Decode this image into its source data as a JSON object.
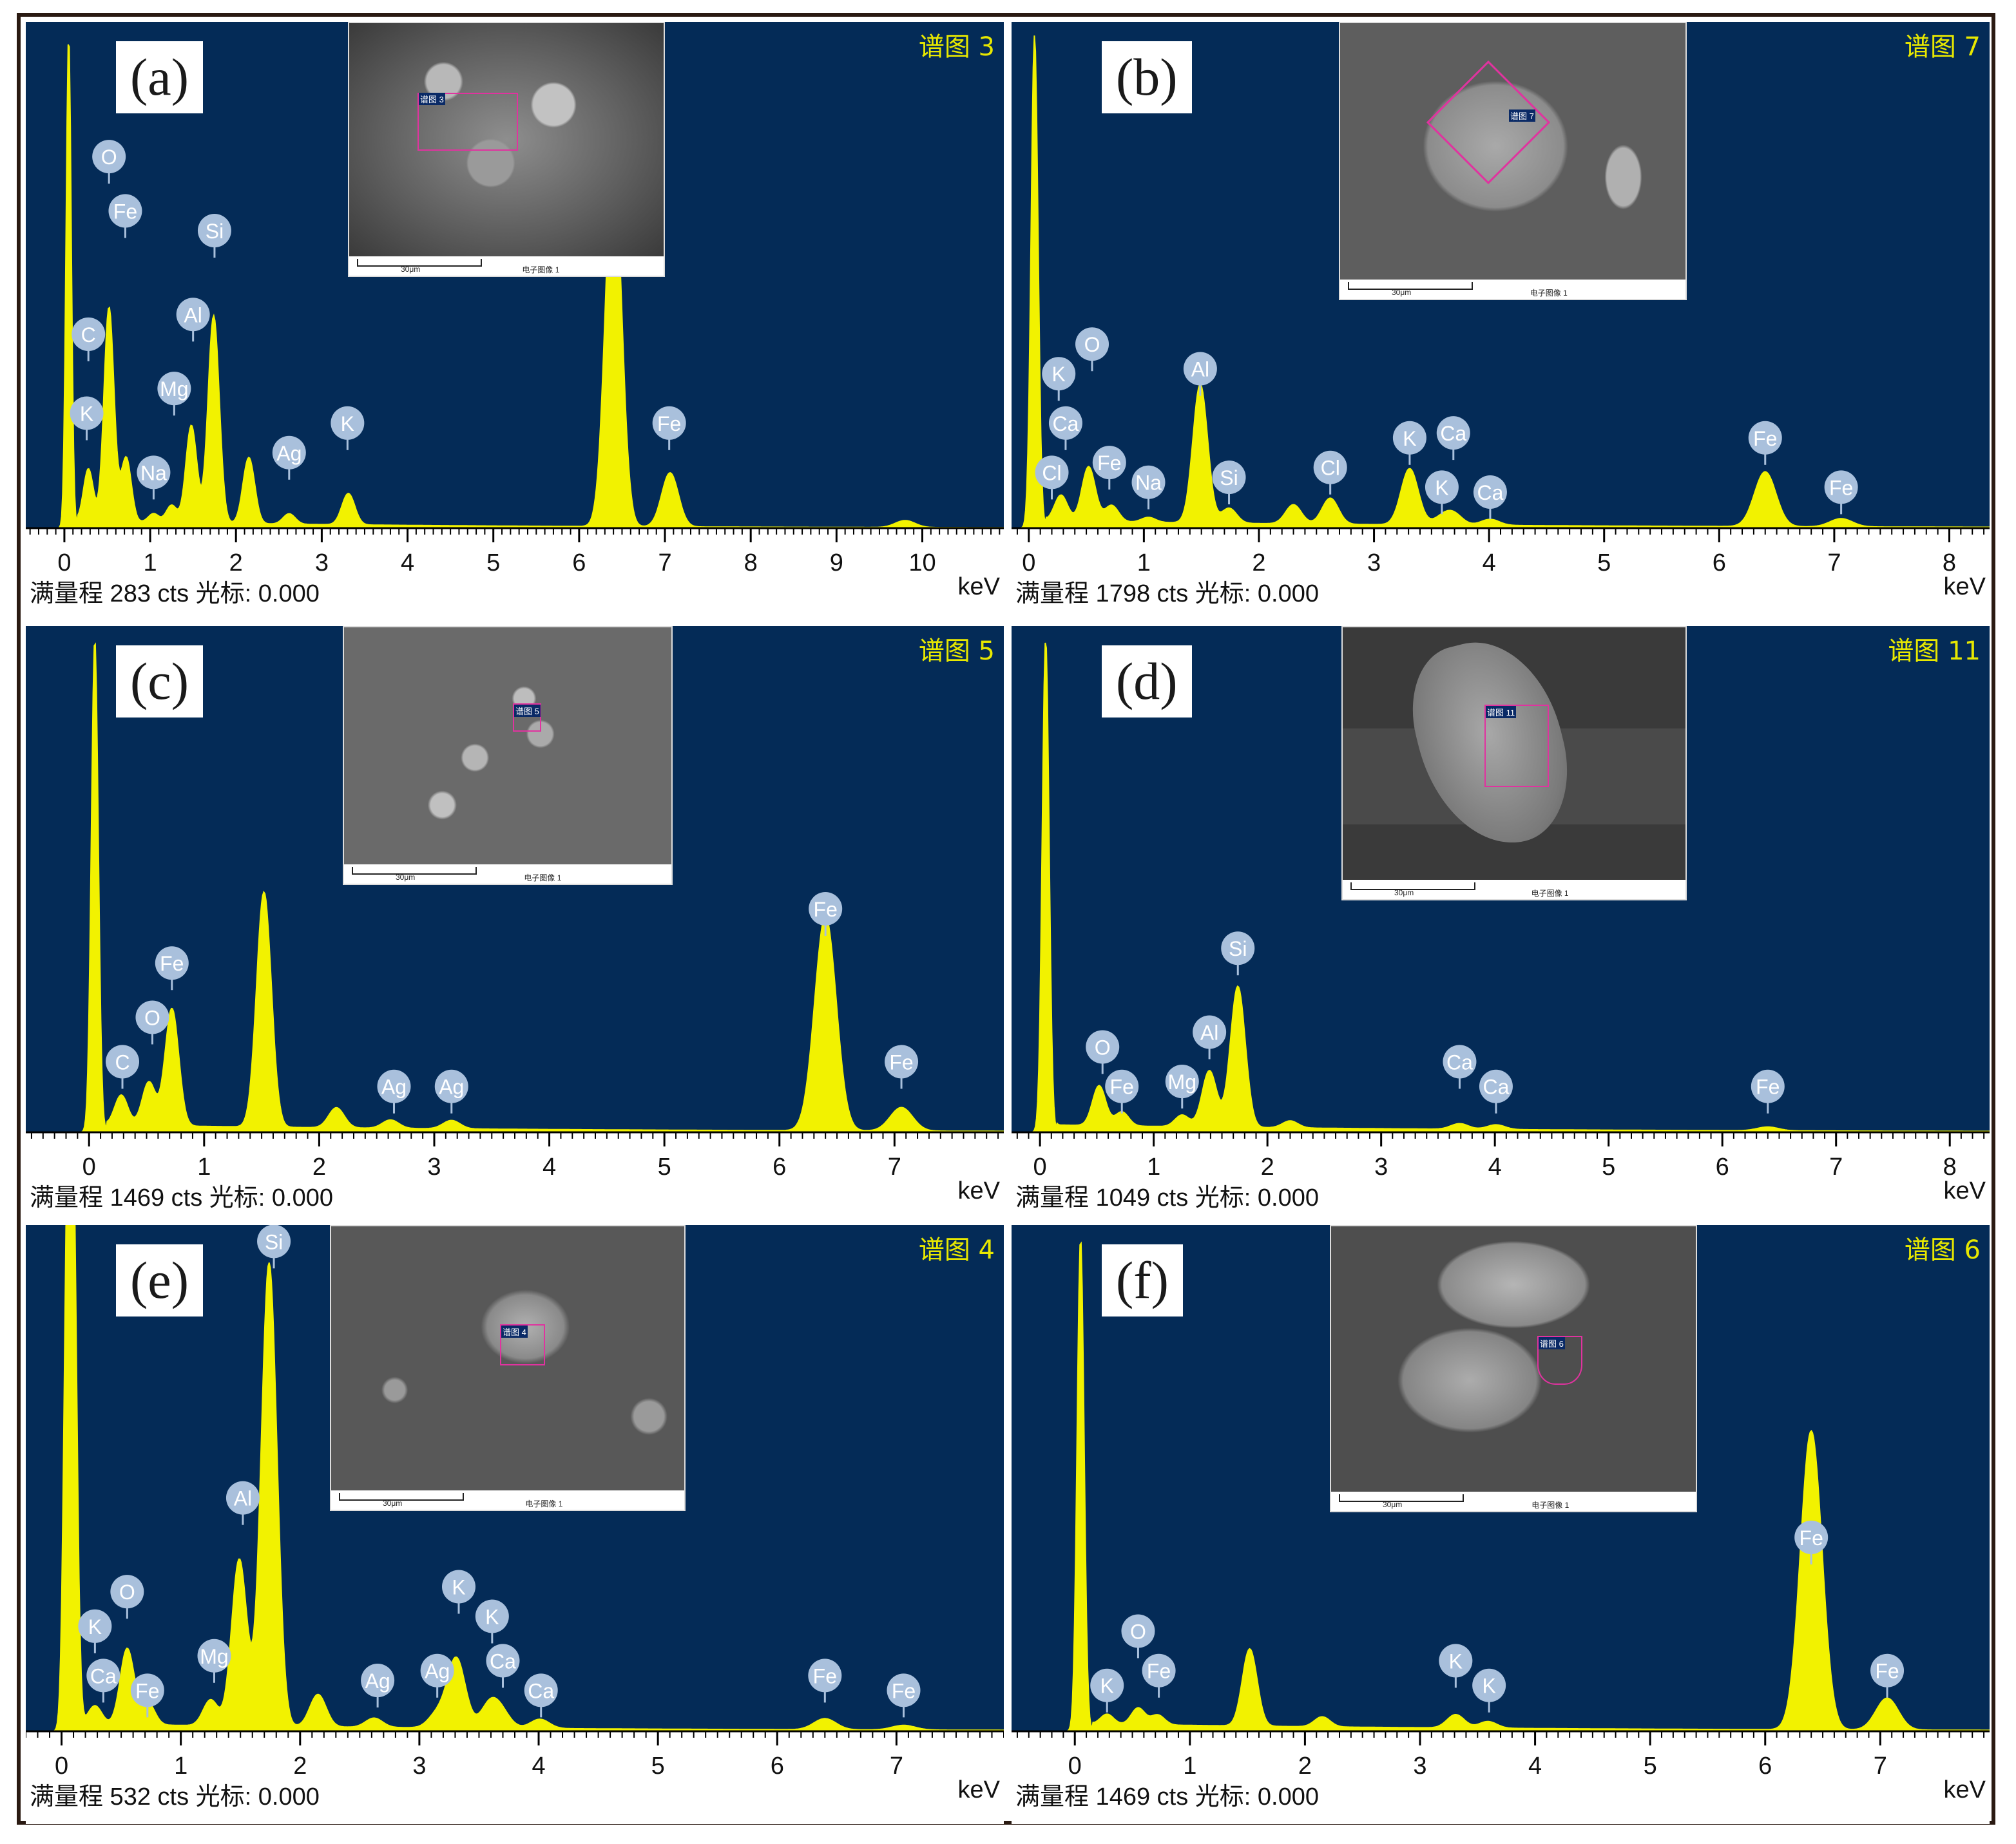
{
  "colors": {
    "plot_bg": "#042b57",
    "spectrum": "#f2f200",
    "peak_label_bg": "#a9c0dc",
    "roi": "#e0339f",
    "title_yellow": "#e8e800"
  },
  "chart_data": [
    {
      "type": "area",
      "panel_label": "(a)",
      "title": "谱图 3",
      "status": "满量程 283 cts 光标: 0.000",
      "xlabel": "keV",
      "xlim": [
        -0.45,
        10.95
      ],
      "xticks": [
        0,
        1,
        2,
        3,
        4,
        5,
        6,
        7,
        8,
        9,
        10
      ],
      "ylim": [
        0,
        283
      ],
      "x_peaks": [
        0.05,
        0.28,
        0.52,
        0.72,
        1.04,
        1.25,
        1.48,
        1.74,
        2.15,
        2.62,
        3.31,
        6.4,
        7.06,
        9.8
      ],
      "y_peaks": [
        283,
        30,
        123,
        37,
        5,
        10,
        56,
        119,
        38,
        6,
        18,
        213,
        31,
        4
      ],
      "peak_labels": [
        {
          "el": "O",
          "x": 0.52,
          "y_frac": 0.74
        },
        {
          "el": "Fe",
          "x": 0.71,
          "y_frac": 0.63
        },
        {
          "el": "C",
          "x": 0.28,
          "y_frac": 0.38
        },
        {
          "el": "K",
          "x": 0.26,
          "y_frac": 0.22
        },
        {
          "el": "Mg",
          "x": 1.28,
          "y_frac": 0.27
        },
        {
          "el": "Al",
          "x": 1.5,
          "y_frac": 0.42
        },
        {
          "el": "Si",
          "x": 1.75,
          "y_frac": 0.59
        },
        {
          "el": "Na",
          "x": 1.04,
          "y_frac": 0.1
        },
        {
          "el": "Ag",
          "x": 2.62,
          "y_frac": 0.14
        },
        {
          "el": "K",
          "x": 3.3,
          "y_frac": 0.2
        },
        {
          "el": "Fe",
          "x": 7.05,
          "y_frac": 0.2
        }
      ]
    },
    {
      "type": "area",
      "panel_label": "(b)",
      "title": "谱图 7",
      "status": "满量程 1798 cts 光标: 0.000",
      "xlabel": "keV",
      "xlim": [
        -0.15,
        8.35
      ],
      "xticks": [
        0,
        1,
        2,
        3,
        4,
        5,
        6,
        7,
        8
      ],
      "ylim": [
        0,
        1798
      ],
      "x_peaks": [
        0.05,
        0.28,
        0.52,
        0.72,
        1.04,
        1.49,
        1.74,
        2.3,
        2.62,
        3.31,
        3.59,
        3.69,
        4.01,
        6.4,
        7.06
      ],
      "y_peaks": [
        1798,
        95,
        200,
        60,
        18,
        505,
        55,
        70,
        95,
        205,
        25,
        40,
        22,
        200,
        30
      ],
      "peak_labels": [
        {
          "el": "O",
          "x": 0.55,
          "y_frac": 0.36
        },
        {
          "el": "K",
          "x": 0.26,
          "y_frac": 0.3
        },
        {
          "el": "Ca",
          "x": 0.32,
          "y_frac": 0.2
        },
        {
          "el": "Cl",
          "x": 0.2,
          "y_frac": 0.1
        },
        {
          "el": "Fe",
          "x": 0.7,
          "y_frac": 0.12
        },
        {
          "el": "Na",
          "x": 1.04,
          "y_frac": 0.08
        },
        {
          "el": "Al",
          "x": 1.49,
          "y_frac": 0.31
        },
        {
          "el": "Si",
          "x": 1.74,
          "y_frac": 0.09
        },
        {
          "el": "Cl",
          "x": 2.62,
          "y_frac": 0.11
        },
        {
          "el": "K",
          "x": 3.31,
          "y_frac": 0.17
        },
        {
          "el": "Ca",
          "x": 3.69,
          "y_frac": 0.18
        },
        {
          "el": "K",
          "x": 3.59,
          "y_frac": 0.07
        },
        {
          "el": "Ca",
          "x": 4.01,
          "y_frac": 0.06
        },
        {
          "el": "Fe",
          "x": 6.4,
          "y_frac": 0.17
        },
        {
          "el": "Fe",
          "x": 7.06,
          "y_frac": 0.07
        }
      ]
    },
    {
      "type": "area",
      "panel_label": "(c)",
      "title": "谱图 5",
      "status": "满量程 1469 cts 光标: 0.000",
      "xlabel": "keV",
      "xlim": [
        -0.55,
        7.95
      ],
      "xticks": [
        0,
        1,
        2,
        3,
        4,
        5,
        6,
        7
      ],
      "ylim": [
        0,
        1469
      ],
      "x_peaks": [
        0.05,
        0.28,
        0.52,
        0.72,
        1.52,
        2.15,
        2.62,
        3.15,
        6.4,
        7.06
      ],
      "y_peaks": [
        1469,
        90,
        130,
        350,
        700,
        60,
        25,
        25,
        640,
        70
      ],
      "peak_labels": [
        {
          "el": "Fe",
          "x": 6.4,
          "y_frac": 0.44
        },
        {
          "el": "Fe",
          "x": 7.06,
          "y_frac": 0.13
        },
        {
          "el": "Fe",
          "x": 0.72,
          "y_frac": 0.33
        },
        {
          "el": "O",
          "x": 0.55,
          "y_frac": 0.22
        },
        {
          "el": "C",
          "x": 0.29,
          "y_frac": 0.13
        },
        {
          "el": "Ag",
          "x": 2.65,
          "y_frac": 0.08
        },
        {
          "el": "Ag",
          "x": 3.15,
          "y_frac": 0.08
        }
      ]
    },
    {
      "type": "area",
      "panel_label": "(d)",
      "title": "谱图 11",
      "status": "满量程 1049 cts 光标: 0.000",
      "xlabel": "keV",
      "xlim": [
        -0.25,
        8.35
      ],
      "xticks": [
        0,
        1,
        2,
        3,
        4,
        5,
        6,
        7,
        8
      ],
      "ylim": [
        0,
        1049
      ],
      "x_peaks": [
        0.05,
        0.52,
        0.72,
        1.25,
        1.49,
        1.74,
        2.2,
        3.69,
        4.01,
        6.4
      ],
      "y_peaks": [
        1049,
        85,
        30,
        25,
        120,
        300,
        15,
        12,
        10,
        8
      ],
      "peak_labels": [
        {
          "el": "Si",
          "x": 1.74,
          "y_frac": 0.36
        },
        {
          "el": "Al",
          "x": 1.49,
          "y_frac": 0.19
        },
        {
          "el": "Mg",
          "x": 1.25,
          "y_frac": 0.09
        },
        {
          "el": "O",
          "x": 0.55,
          "y_frac": 0.16
        },
        {
          "el": "Fe",
          "x": 0.72,
          "y_frac": 0.08
        },
        {
          "el": "Ca",
          "x": 3.69,
          "y_frac": 0.13
        },
        {
          "el": "Ca",
          "x": 4.01,
          "y_frac": 0.08
        },
        {
          "el": "Fe",
          "x": 6.4,
          "y_frac": 0.08
        }
      ]
    },
    {
      "type": "area",
      "panel_label": "(e)",
      "title": "谱图 4",
      "status": "满量程 532 cts 光标: 0.000",
      "xlabel": "keV",
      "xlim": [
        -0.3,
        7.9
      ],
      "xticks": [
        0,
        1,
        2,
        3,
        4,
        5,
        6,
        7
      ],
      "ylim": [
        0,
        532
      ],
      "x_peaks": [
        0.05,
        0.1,
        0.28,
        0.55,
        0.72,
        1.25,
        1.49,
        1.74,
        2.15,
        2.62,
        3.15,
        3.31,
        3.59,
        3.69,
        4.01,
        6.4,
        7.06
      ],
      "y_peaks": [
        532,
        532,
        20,
        82,
        25,
        28,
        180,
        500,
        35,
        10,
        15,
        75,
        25,
        15,
        10,
        12,
        5
      ],
      "peak_labels": [
        {
          "el": "Si",
          "x": 1.78,
          "y_frac": 0.98
        },
        {
          "el": "Al",
          "x": 1.52,
          "y_frac": 0.46
        },
        {
          "el": "Mg",
          "x": 1.28,
          "y_frac": 0.14
        },
        {
          "el": "O",
          "x": 0.55,
          "y_frac": 0.27
        },
        {
          "el": "K",
          "x": 0.28,
          "y_frac": 0.2
        },
        {
          "el": "Ca",
          "x": 0.35,
          "y_frac": 0.1
        },
        {
          "el": "Fe",
          "x": 0.72,
          "y_frac": 0.07
        },
        {
          "el": "Ag",
          "x": 2.65,
          "y_frac": 0.09
        },
        {
          "el": "Ag",
          "x": 3.15,
          "y_frac": 0.11
        },
        {
          "el": "K",
          "x": 3.33,
          "y_frac": 0.28
        },
        {
          "el": "K",
          "x": 3.61,
          "y_frac": 0.22
        },
        {
          "el": "Ca",
          "x": 3.7,
          "y_frac": 0.13
        },
        {
          "el": "Ca",
          "x": 4.02,
          "y_frac": 0.07
        },
        {
          "el": "Fe",
          "x": 6.4,
          "y_frac": 0.1
        },
        {
          "el": "Fe",
          "x": 7.06,
          "y_frac": 0.07
        }
      ]
    },
    {
      "type": "area",
      "panel_label": "(f)",
      "title": "谱图 6",
      "status": "满量程 1469 cts 光标: 0.000",
      "xlabel": "keV",
      "xlim": [
        -0.55,
        7.95
      ],
      "xticks": [
        0,
        1,
        2,
        3,
        4,
        5,
        6,
        7
      ],
      "ylim": [
        0,
        1469
      ],
      "x_peaks": [
        0.05,
        0.28,
        0.55,
        0.72,
        1.52,
        2.15,
        3.31,
        3.59,
        6.4,
        7.06
      ],
      "y_peaks": [
        1469,
        30,
        50,
        30,
        230,
        30,
        40,
        20,
        890,
        95
      ],
      "peak_labels": [
        {
          "el": "Fe",
          "x": 6.4,
          "y_frac": 0.38
        },
        {
          "el": "Fe",
          "x": 7.06,
          "y_frac": 0.11
        },
        {
          "el": "O",
          "x": 0.55,
          "y_frac": 0.19
        },
        {
          "el": "Fe",
          "x": 0.73,
          "y_frac": 0.11
        },
        {
          "el": "K",
          "x": 0.28,
          "y_frac": 0.08
        },
        {
          "el": "K",
          "x": 3.31,
          "y_frac": 0.13
        },
        {
          "el": "K",
          "x": 3.6,
          "y_frac": 0.08
        }
      ]
    }
  ],
  "insets": [
    {
      "roi": "谱图 3",
      "scale": "30μm",
      "image": "电子图像 1"
    },
    {
      "roi": "谱图 7",
      "scale": "30μm",
      "image": "电子图像 1"
    },
    {
      "roi": "谱图 5",
      "scale": "30μm",
      "image": "电子图像 1"
    },
    {
      "roi": "谱图 11",
      "scale": "30μm",
      "image": "电子图像 1"
    },
    {
      "roi": "谱图 4",
      "scale": "30μm",
      "image": "电子图像 1"
    },
    {
      "roi": "谱图 6",
      "scale": "30μm",
      "image": "电子图像 1"
    }
  ]
}
